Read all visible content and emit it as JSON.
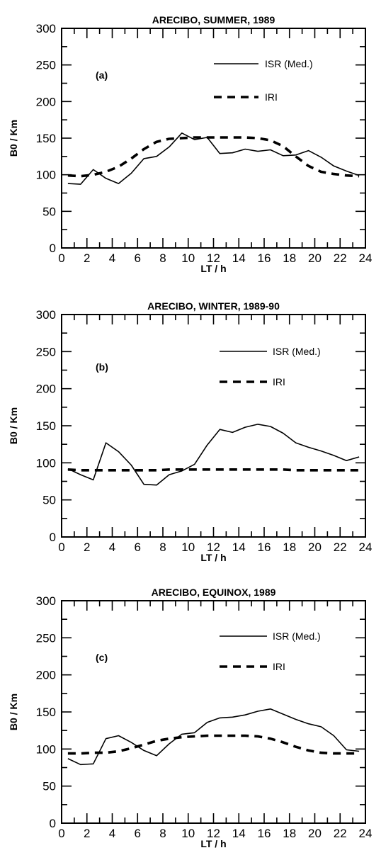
{
  "chart_data": [
    {
      "type": "line",
      "title": "ARECIBO, SUMMER, 1989",
      "panel_label": "(a)",
      "xlabel": "LT / h",
      "ylabel": "B0 / Km",
      "xlim": [
        0,
        24
      ],
      "ylim": [
        0,
        300
      ],
      "xticks": [
        0,
        2,
        4,
        6,
        8,
        10,
        12,
        14,
        16,
        18,
        20,
        22,
        24
      ],
      "yticks": [
        0,
        50,
        100,
        150,
        200,
        250,
        300
      ],
      "grid": false,
      "legend_position": "top-right",
      "series": [
        {
          "name": "ISR (Med.)",
          "style": "solid",
          "x": [
            0.5,
            1.5,
            2.5,
            3.5,
            4.5,
            5.5,
            6.5,
            7.5,
            8.5,
            9.5,
            10.5,
            11.5,
            12.5,
            13.5,
            14.5,
            15.5,
            16.5,
            17.5,
            18.5,
            19.5,
            20.5,
            21.5,
            22.5,
            23.5
          ],
          "y": [
            88,
            87,
            107,
            95,
            88,
            102,
            122,
            125,
            138,
            157,
            148,
            151,
            129,
            130,
            135,
            132,
            134,
            126,
            127,
            133,
            124,
            112,
            105,
            99
          ]
        },
        {
          "name": "IRI",
          "style": "dashed",
          "x": [
            0.5,
            1.5,
            2.5,
            3.5,
            4.5,
            5.5,
            6.5,
            7.5,
            8.5,
            9.5,
            10.5,
            11.5,
            12.5,
            13.5,
            14.5,
            15.5,
            16.5,
            17.5,
            18.5,
            19.5,
            20.5,
            21.5,
            22.5,
            23.5
          ],
          "y": [
            99,
            98,
            100,
            104,
            111,
            122,
            135,
            145,
            149,
            150,
            151,
            151,
            151,
            151,
            151,
            150,
            147,
            139,
            125,
            112,
            104,
            101,
            99,
            98
          ]
        }
      ]
    },
    {
      "type": "line",
      "title": "ARECIBO, WINTER, 1989-90",
      "panel_label": "(b)",
      "xlabel": "LT / h",
      "ylabel": "B0 / Km",
      "xlim": [
        0,
        24
      ],
      "ylim": [
        0,
        300
      ],
      "xticks": [
        0,
        2,
        4,
        6,
        8,
        10,
        12,
        14,
        16,
        18,
        20,
        22,
        24
      ],
      "yticks": [
        0,
        50,
        100,
        150,
        200,
        250,
        300
      ],
      "grid": false,
      "legend_position": "top-right",
      "series": [
        {
          "name": "ISR (Med.)",
          "style": "solid",
          "x": [
            0.5,
            1.5,
            2.5,
            3.5,
            4.5,
            5.5,
            6.5,
            7.5,
            8.5,
            9.5,
            10.5,
            11.5,
            12.5,
            13.5,
            14.5,
            15.5,
            16.5,
            17.5,
            18.5,
            19.5,
            20.5,
            21.5,
            22.5,
            23.5
          ],
          "y": [
            92,
            84,
            77,
            127,
            115,
            97,
            71,
            70,
            84,
            89,
            98,
            124,
            145,
            141,
            148,
            152,
            149,
            140,
            127,
            121,
            116,
            110,
            103,
            108
          ]
        },
        {
          "name": "IRI",
          "style": "dashed",
          "x": [
            0.5,
            1.5,
            2.5,
            3.5,
            4.5,
            5.5,
            6.5,
            7.5,
            8.5,
            9.5,
            10.5,
            11.5,
            12.5,
            13.5,
            14.5,
            15.5,
            16.5,
            17.5,
            18.5,
            19.5,
            20.5,
            21.5,
            22.5,
            23.5
          ],
          "y": [
            91,
            90,
            90,
            90,
            90,
            90,
            90,
            90,
            91,
            91,
            91,
            91,
            91,
            91,
            91,
            91,
            91,
            91,
            90,
            90,
            90,
            90,
            90,
            90
          ]
        }
      ]
    },
    {
      "type": "line",
      "title": "ARECIBO, EQUINOX, 1989",
      "panel_label": "(c)",
      "xlabel": "LT / h",
      "ylabel": "B0 / Km",
      "xlim": [
        0,
        24
      ],
      "ylim": [
        0,
        300
      ],
      "xticks": [
        0,
        2,
        4,
        6,
        8,
        10,
        12,
        14,
        16,
        18,
        20,
        22,
        24
      ],
      "yticks": [
        0,
        50,
        100,
        150,
        200,
        250,
        300
      ],
      "grid": false,
      "legend_position": "top-right",
      "series": [
        {
          "name": "ISR (Med.)",
          "style": "solid",
          "x": [
            0.5,
            1.5,
            2.5,
            3.5,
            4.5,
            5.5,
            6.5,
            7.5,
            8.5,
            9.5,
            10.5,
            11.5,
            12.5,
            13.5,
            14.5,
            15.5,
            16.5,
            17.5,
            18.5,
            19.5,
            20.5,
            21.5,
            22.5,
            23.5
          ],
          "y": [
            87,
            79,
            80,
            114,
            118,
            109,
            98,
            91,
            107,
            120,
            122,
            136,
            142,
            143,
            146,
            151,
            154,
            147,
            140,
            134,
            130,
            118,
            99,
            97
          ]
        },
        {
          "name": "IRI",
          "style": "dashed",
          "x": [
            0.5,
            1.5,
            2.5,
            3.5,
            4.5,
            5.5,
            6.5,
            7.5,
            8.5,
            9.5,
            10.5,
            11.5,
            12.5,
            13.5,
            14.5,
            15.5,
            16.5,
            17.5,
            18.5,
            19.5,
            20.5,
            21.5,
            22.5,
            23.5
          ],
          "y": [
            94,
            94,
            95,
            95,
            97,
            101,
            106,
            111,
            114,
            116,
            117,
            118,
            118,
            118,
            118,
            117,
            114,
            109,
            103,
            98,
            95,
            94,
            94,
            94
          ]
        }
      ]
    }
  ]
}
